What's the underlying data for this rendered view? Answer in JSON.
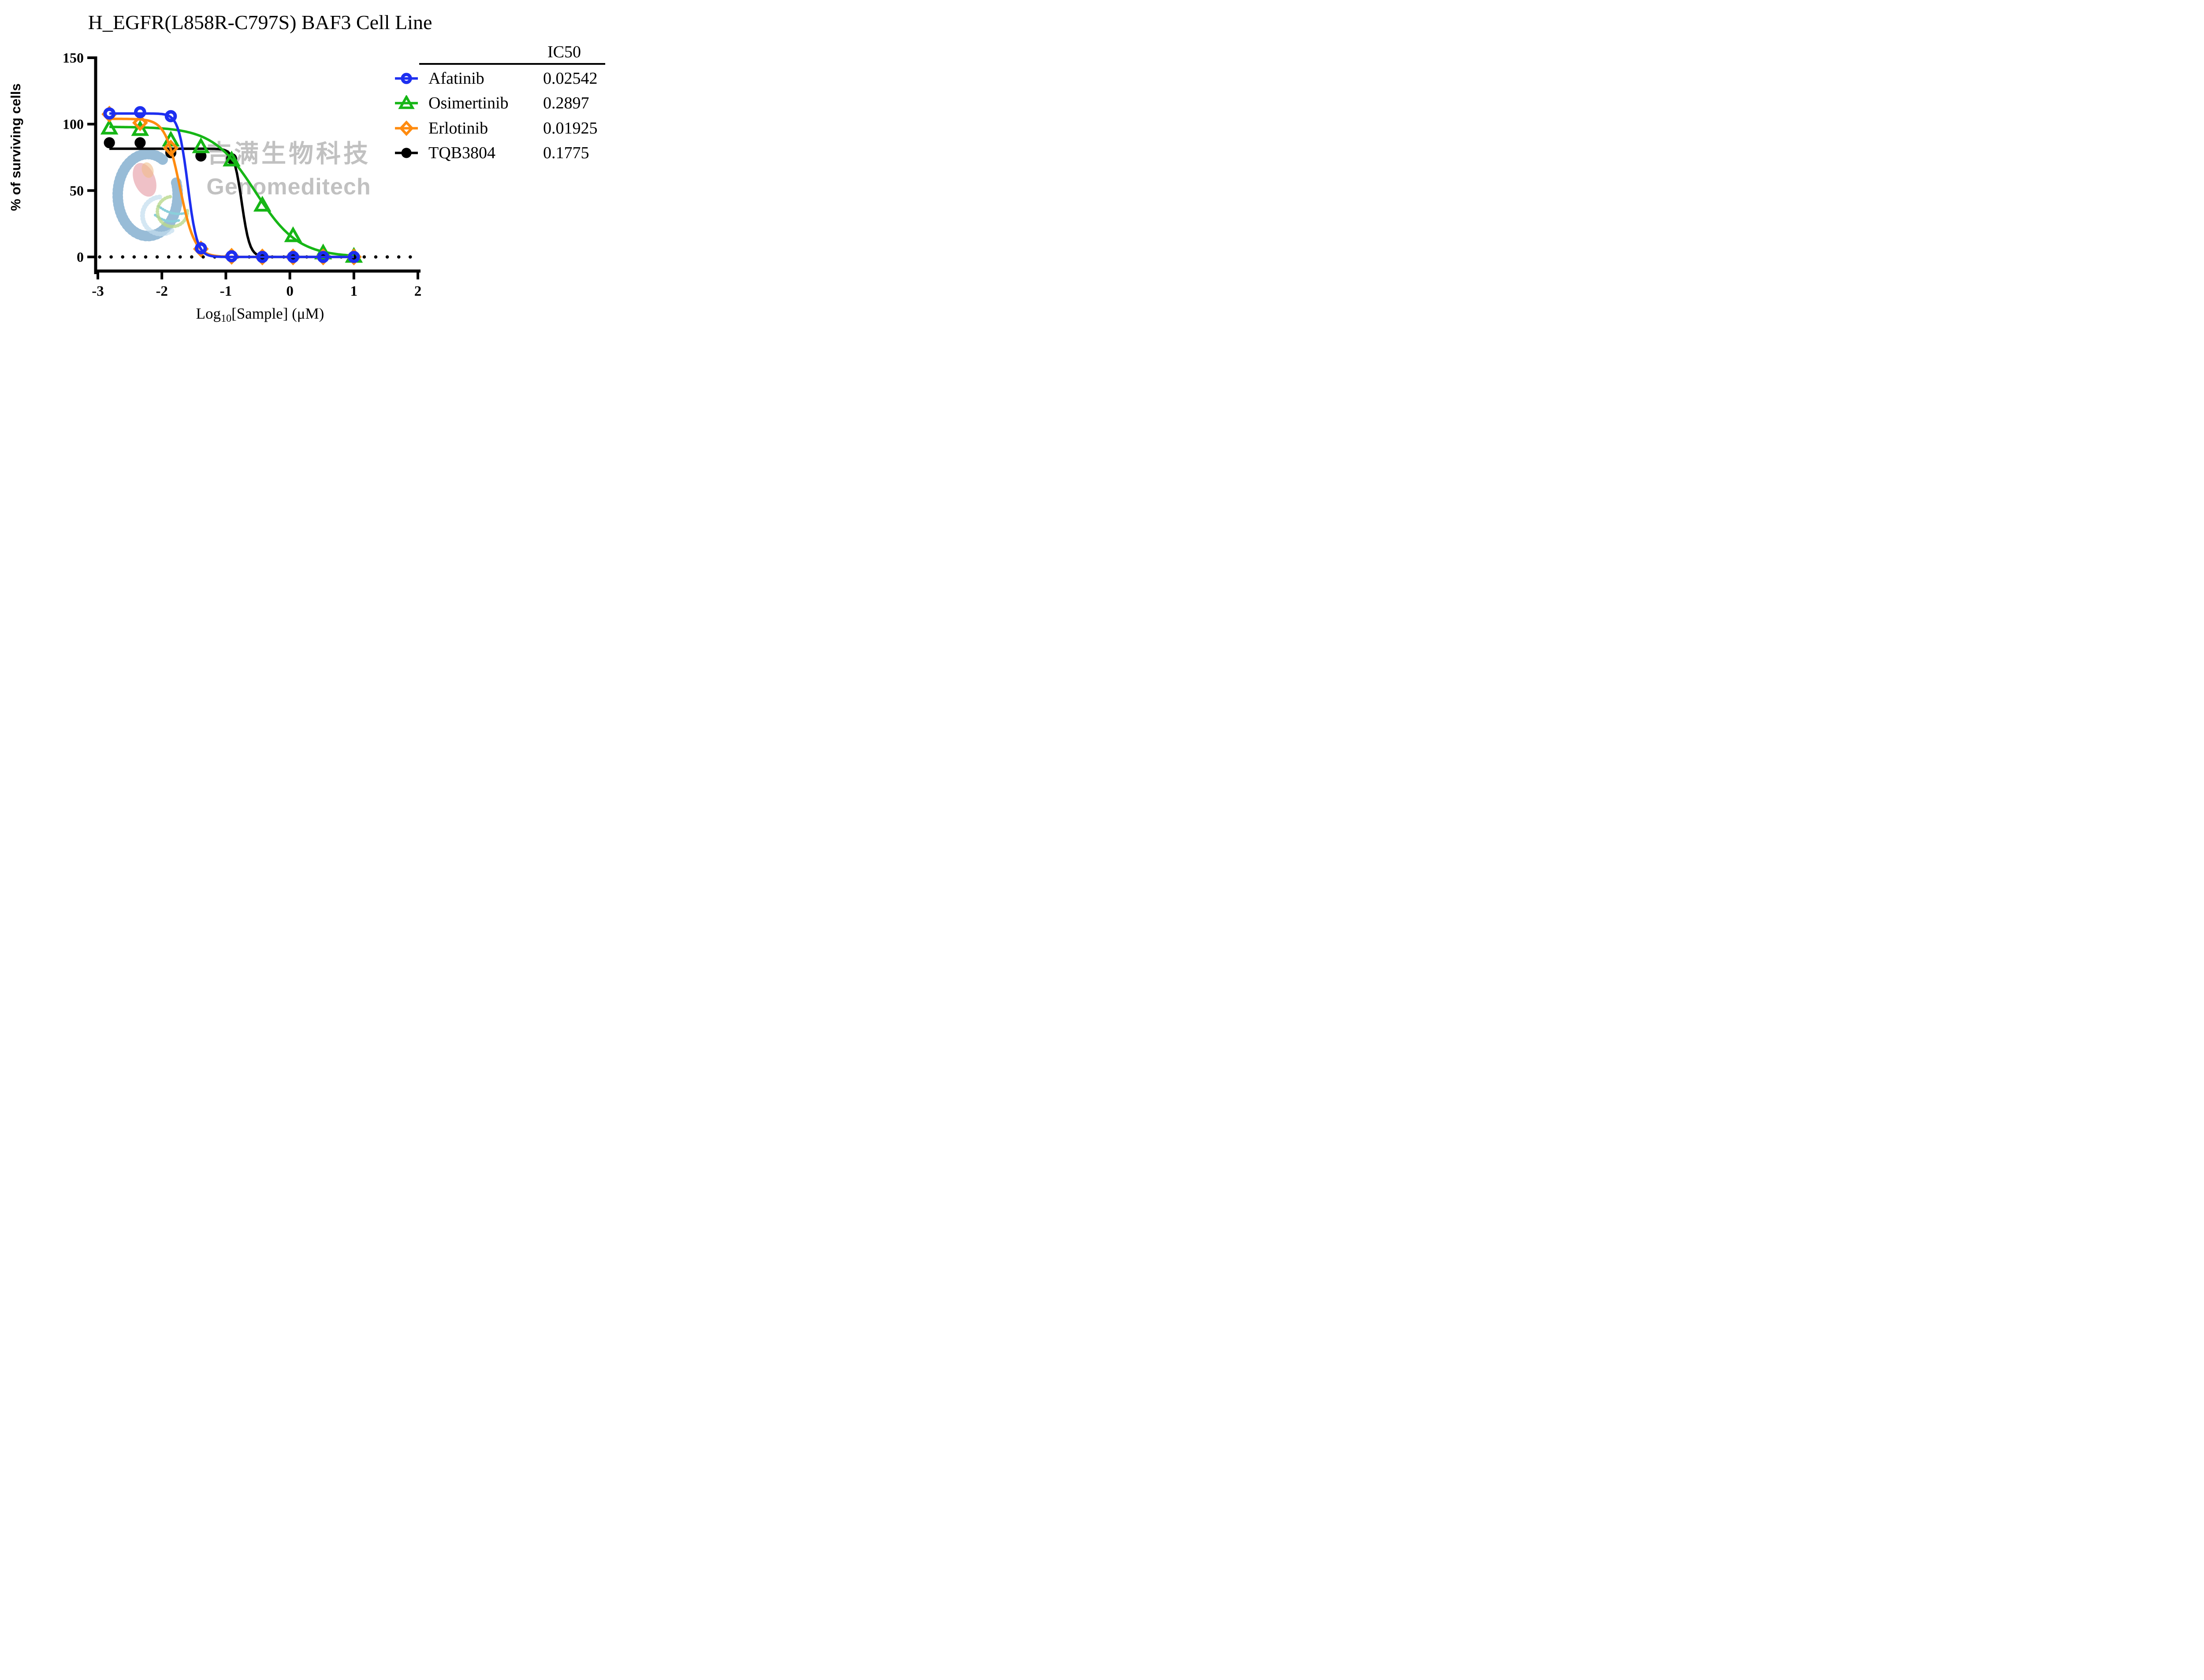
{
  "title": "H_EGFR(L858R-C797S) BAF3 Cell Line",
  "watermark": {
    "line1": "吉满生物科技",
    "line2": "Genomeditech"
  },
  "legend": {
    "header": "IC50"
  },
  "chart_data": {
    "type": "line",
    "title": "H_EGFR(L858R-C797S) BAF3 Cell Line",
    "xlabel": "Log10[Sample] (μM)",
    "xlabel_parts": {
      "prefix": "Log",
      "sub": "10",
      "rest": "[Sample] (μM)"
    },
    "ylabel": "% of surviving cells",
    "xlim": [
      -3,
      2
    ],
    "ylim": [
      0,
      150
    ],
    "x_ticks": [
      -3,
      -2,
      -1,
      0,
      1,
      2
    ],
    "y_ticks": [
      150,
      100,
      50,
      0
    ],
    "zero_line_dotted": true,
    "legend_position": "right",
    "grid": false,
    "x": [
      -2.82,
      -2.34,
      -1.86,
      -1.39,
      -0.91,
      -0.43,
      0.05,
      0.52,
      1.0
    ],
    "series": [
      {
        "name": "Afatinib",
        "ic50": "0.02542",
        "color": "#1d2ff0",
        "marker": "circle-open",
        "values": [
          108,
          109,
          106,
          6.5,
          0.5,
          0,
          0,
          0,
          0
        ],
        "fit": {
          "top": 108,
          "bottom": 0,
          "logIC50": -1.595,
          "hill": 6.0
        }
      },
      {
        "name": "Osimertinib",
        "ic50": "0.2897",
        "color": "#16b616",
        "marker": "triangle-open",
        "values": [
          97,
          96,
          88,
          83,
          73,
          39,
          16,
          3,
          0.5
        ],
        "fit": {
          "top": 98,
          "bottom": 0,
          "logIC50": -0.538,
          "hill": 1.3
        }
      },
      {
        "name": "Erlotinib",
        "ic50": "0.01925",
        "color": "#ff8b0f",
        "marker": "diamond-open",
        "values": [
          107.5,
          101,
          82,
          6,
          0.5,
          0,
          0,
          0,
          0
        ],
        "fit": {
          "top": 104,
          "bottom": 0,
          "logIC50": -1.716,
          "hill": 3.8
        }
      },
      {
        "name": "TQB3804",
        "ic50": "0.1775",
        "color": "#000000",
        "marker": "circle-filled",
        "values": [
          86,
          86,
          78.5,
          76,
          74,
          0.5,
          0,
          0,
          0
        ],
        "fit": {
          "top": 81.5,
          "bottom": 0,
          "logIC50": -0.751,
          "hill": 7.0
        }
      }
    ]
  }
}
